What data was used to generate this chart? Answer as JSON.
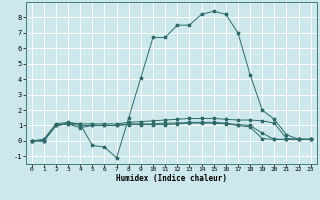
{
  "xlabel": "Humidex (Indice chaleur)",
  "bg_color": "#cce8ec",
  "grid_color": "#ffffff",
  "line_color": "#2e6b6b",
  "xlim": [
    -0.5,
    23.5
  ],
  "ylim": [
    -1.5,
    9.0
  ],
  "xticks": [
    0,
    1,
    2,
    3,
    4,
    5,
    6,
    7,
    8,
    9,
    10,
    11,
    12,
    13,
    14,
    15,
    16,
    17,
    18,
    19,
    20,
    21,
    22,
    23
  ],
  "yticks": [
    -1,
    0,
    1,
    2,
    3,
    4,
    5,
    6,
    7,
    8
  ],
  "curves": [
    {
      "x": [
        0,
        1,
        2,
        3,
        4,
        5,
        6,
        7,
        8,
        9,
        10,
        11,
        12,
        13,
        14,
        15,
        16,
        17,
        18,
        19,
        20,
        21,
        22,
        23
      ],
      "y": [
        0,
        0.1,
        1.1,
        1.2,
        1.1,
        -0.3,
        -0.4,
        -1.1,
        1.5,
        4.1,
        6.7,
        6.7,
        7.5,
        7.5,
        8.2,
        8.4,
        8.2,
        7.0,
        4.3,
        2.0,
        1.4,
        0.4,
        0.1,
        0.1
      ]
    },
    {
      "x": [
        0,
        1,
        2,
        3,
        4,
        5,
        6,
        7,
        8,
        9,
        10,
        11,
        12,
        13,
        14,
        15,
        16,
        17,
        18,
        19,
        20,
        21,
        22,
        23
      ],
      "y": [
        0,
        0.0,
        1.0,
        1.15,
        1.1,
        1.1,
        1.1,
        1.1,
        1.2,
        1.25,
        1.3,
        1.35,
        1.4,
        1.45,
        1.45,
        1.45,
        1.4,
        1.35,
        1.35,
        1.3,
        1.15,
        0.15,
        0.1,
        0.1
      ]
    },
    {
      "x": [
        0,
        1,
        2,
        3,
        4,
        5,
        6,
        7,
        8,
        9,
        10,
        11,
        12,
        13,
        14,
        15,
        16,
        17,
        18,
        19,
        20,
        21,
        22,
        23
      ],
      "y": [
        0,
        0.0,
        1.0,
        1.1,
        1.0,
        1.0,
        1.0,
        1.0,
        1.1,
        1.1,
        1.1,
        1.15,
        1.15,
        1.2,
        1.2,
        1.2,
        1.15,
        1.05,
        1.0,
        0.5,
        0.1,
        0.1,
        0.1,
        0.1
      ]
    },
    {
      "x": [
        0,
        1,
        2,
        3,
        4,
        5,
        6,
        7,
        8,
        9,
        10,
        11,
        12,
        13,
        14,
        15,
        16,
        17,
        18,
        19,
        20,
        21,
        22,
        23
      ],
      "y": [
        0,
        0.0,
        1.0,
        1.1,
        0.85,
        1.0,
        1.0,
        1.0,
        1.05,
        1.05,
        1.05,
        1.05,
        1.1,
        1.15,
        1.15,
        1.15,
        1.1,
        1.0,
        0.9,
        0.15,
        0.1,
        0.1,
        0.1,
        0.1
      ]
    }
  ]
}
